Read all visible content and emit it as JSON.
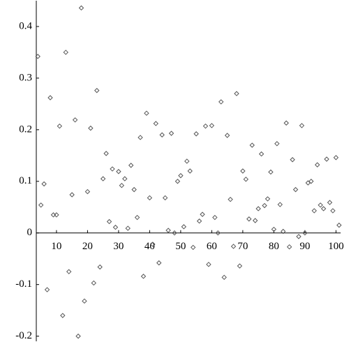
{
  "chart_data": {
    "type": "scatter",
    "x": [
      4,
      5,
      6,
      7,
      8,
      9,
      10,
      11,
      12,
      13,
      14,
      15,
      16,
      17,
      18,
      19,
      20,
      21,
      22,
      23,
      24,
      25,
      26,
      27,
      28,
      29,
      30,
      31,
      32,
      33,
      34,
      35,
      36,
      37,
      38,
      39,
      40,
      41,
      42,
      43,
      44,
      45,
      46,
      47,
      48,
      49,
      50,
      51,
      52,
      53,
      54,
      55,
      56,
      57,
      58,
      59,
      60,
      61,
      62,
      63,
      64,
      65,
      66,
      67,
      68,
      69,
      70,
      71,
      72,
      73,
      74,
      75,
      76,
      77,
      78,
      79,
      80,
      81,
      82,
      83,
      84,
      85,
      86,
      87,
      88,
      89,
      90,
      91,
      92,
      93,
      94,
      95,
      96,
      97,
      98,
      99,
      100,
      101
    ],
    "values": [
      0.342,
      0.054,
      0.095,
      -0.11,
      0.262,
      0.035,
      0.035,
      0.207,
      -0.16,
      0.35,
      -0.075,
      0.074,
      0.219,
      -0.2,
      0.436,
      -0.132,
      0.08,
      0.203,
      -0.097,
      0.276,
      -0.066,
      0.105,
      0.154,
      0.022,
      0.124,
      0.011,
      0.119,
      0.092,
      0.105,
      0.009,
      0.131,
      0.084,
      0.03,
      0.185,
      -0.084,
      0.232,
      0.068,
      -0.022,
      0.212,
      -0.058,
      0.19,
      0.068,
      0.005,
      0.193,
      0.0,
      0.1,
      0.111,
      0.012,
      0.139,
      0.12,
      -0.028,
      0.192,
      0.023,
      0.036,
      0.207,
      -0.061,
      0.208,
      0.03,
      0.0,
      0.254,
      -0.086,
      0.189,
      0.065,
      -0.026,
      0.27,
      -0.064,
      0.12,
      0.104,
      0.027,
      0.17,
      0.024,
      0.047,
      0.153,
      0.053,
      0.066,
      0.118,
      0.007,
      0.173,
      0.055,
      0.003,
      0.213,
      -0.027,
      0.142,
      0.084,
      -0.007,
      0.208,
      0.0,
      0.097,
      0.1,
      0.043,
      0.132,
      0.054,
      0.047,
      0.143,
      0.059,
      0.043,
      0.146,
      0.015
    ],
    "color": "#555555",
    "xlim": [
      3.5,
      101.5
    ],
    "xticks": [
      10,
      20,
      30,
      40,
      50,
      60,
      70,
      80,
      90,
      100
    ],
    "ylim": [
      -0.21,
      0.45
    ],
    "yticks": [
      -0.2,
      -0.1,
      0,
      0.1,
      0.2,
      0.3,
      0.4
    ]
  }
}
